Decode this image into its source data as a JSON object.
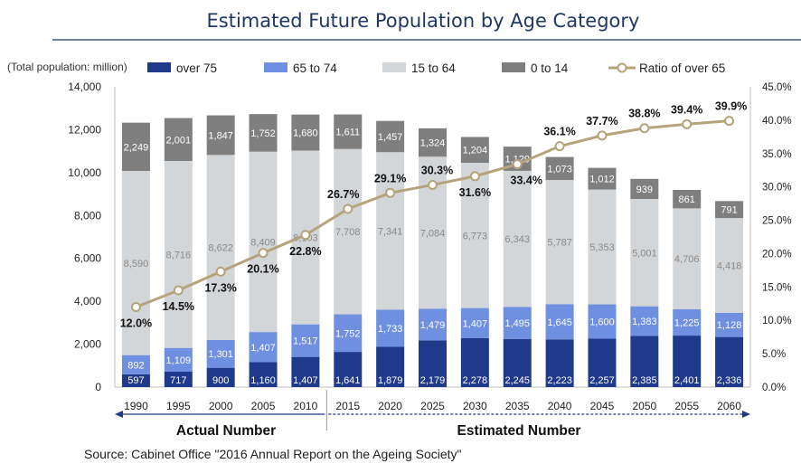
{
  "header": {
    "title": "Estimated Future Population by Age Category"
  },
  "left_axis_label": "(Total population: million)",
  "legend": [
    {
      "label": "over 75",
      "color": "#1f3a8a",
      "kind": "box"
    },
    {
      "label": "65 to 74",
      "color": "#6f8fe0",
      "kind": "box"
    },
    {
      "label": "15 to 64",
      "color": "#d3d6d9",
      "kind": "box"
    },
    {
      "label": "0 to 14",
      "color": "#7f7f7f",
      "kind": "box"
    },
    {
      "label": "Ratio of over 65",
      "color": "#b5a47b",
      "kind": "line"
    }
  ],
  "sections": {
    "actual": "Actual Number",
    "estimated": "Estimated Number"
  },
  "source": "Source: Cabinet Office \"2016 Annual Report on the Ageing Society\"",
  "chart_data": {
    "type": "bar",
    "stacked": true,
    "title": "Estimated Future Population by Age Category",
    "categories": [
      "1990",
      "1995",
      "2000",
      "2005",
      "2010",
      "2015",
      "2020",
      "2025",
      "2030",
      "2035",
      "2040",
      "2045",
      "2050",
      "2055",
      "2060"
    ],
    "series": [
      {
        "name": "over 75",
        "color": "#1f3a8a",
        "label_color": "white",
        "values": [
          597,
          717,
          900,
          1160,
          1407,
          1641,
          1879,
          2179,
          2278,
          2245,
          2223,
          2257,
          2385,
          2401,
          2336
        ],
        "labels": [
          "597",
          "717",
          "900",
          "1,160",
          "1,407",
          "1,641",
          "1,879",
          "2,179",
          "2,278",
          "2,245",
          "2,223",
          "2,257",
          "2,385",
          "2,401",
          "2,336"
        ]
      },
      {
        "name": "65 to 74",
        "color": "#6f8fe0",
        "label_color": "white",
        "values": [
          892,
          1109,
          1301,
          1407,
          1517,
          1752,
          1733,
          1479,
          1407,
          1495,
          1645,
          1600,
          1383,
          1225,
          1128
        ],
        "labels": [
          "892",
          "1,109",
          "1,301",
          "1,407",
          "1,517",
          "1,752",
          "1,733",
          "1,479",
          "1,407",
          "1,495",
          "1,645",
          "1,600",
          "1,383",
          "1,225",
          "1,128"
        ]
      },
      {
        "name": "15 to 64",
        "color": "#d3d6d9",
        "label_color": "gray",
        "values": [
          8590,
          8716,
          8622,
          8409,
          8103,
          7708,
          7341,
          7084,
          6773,
          6343,
          5787,
          5353,
          5001,
          4706,
          4418
        ],
        "labels": [
          "8,590",
          "8,716",
          "8,622",
          "8,409",
          "8,103",
          "7,708",
          "7,341",
          "7,084",
          "6,773",
          "6,343",
          "5,787",
          "5,353",
          "5,001",
          "4,706",
          "4,418"
        ]
      },
      {
        "name": "0 to 14",
        "color": "#7f7f7f",
        "label_color": "white",
        "values": [
          2249,
          2001,
          1847,
          1752,
          1680,
          1611,
          1457,
          1324,
          1204,
          1129,
          1073,
          1012,
          939,
          861,
          791
        ],
        "labels": [
          "2,249",
          "2,001",
          "1,847",
          "1,752",
          "1,680",
          "1,611",
          "1,457",
          "1,324",
          "1,204",
          "1,129",
          "1,073",
          "1,012",
          "939",
          "861",
          "791"
        ]
      }
    ],
    "line_series": {
      "name": "Ratio of over 65",
      "color": "#b5a47b",
      "axis": "right",
      "values": [
        12.0,
        14.5,
        17.3,
        20.1,
        22.8,
        26.7,
        29.1,
        30.3,
        31.6,
        33.4,
        36.1,
        37.7,
        38.8,
        39.4,
        39.9
      ],
      "labels": [
        "12.0%",
        "14.5%",
        "17.3%",
        "20.1%",
        "22.8%",
        "26.7%",
        "29.1%",
        "30.3%",
        "31.6%",
        "33.4%",
        "36.1%",
        "37.7%",
        "38.8%",
        "39.4%",
        "39.9%"
      ]
    },
    "ylim_left": [
      0,
      14000
    ],
    "yticks_left": [
      "0",
      "2,000",
      "4,000",
      "6,000",
      "8,000",
      "10,000",
      "12,000",
      "14,000"
    ],
    "ylim_right": [
      0,
      45
    ],
    "yticks_right": [
      "0.0%",
      "5.0%",
      "10.0%",
      "15.0%",
      "20.0%",
      "25.0%",
      "30.0%",
      "35.0%",
      "40.0%",
      "45.0%"
    ],
    "grid": false,
    "legend_position": "top"
  }
}
